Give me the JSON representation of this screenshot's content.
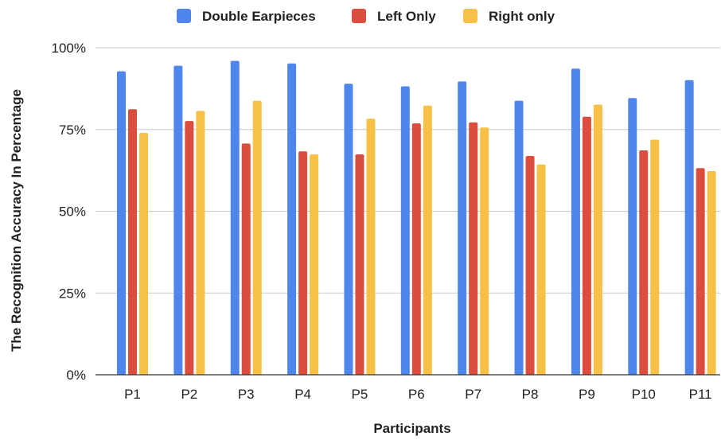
{
  "chart_data": {
    "type": "bar",
    "title": "",
    "xlabel": "Participants",
    "ylabel": "The Recognition Accuracy In Percentage",
    "ylim": [
      0,
      100
    ],
    "y_ticks": [
      "0%",
      "25%",
      "50%",
      "75%",
      "100%"
    ],
    "y_tick_values": [
      0,
      25,
      50,
      75,
      100
    ],
    "grid": true,
    "legend_position": "top",
    "categories": [
      "P1",
      "P2",
      "P3",
      "P4",
      "P5",
      "P6",
      "P7",
      "P8",
      "P9",
      "P10",
      "P11"
    ],
    "series": [
      {
        "name": "Double Earpieces",
        "color": "#4f86ec",
        "values": [
          92.8,
          94.5,
          96,
          95.2,
          89,
          88.2,
          89.7,
          83.8,
          93.6,
          84.6,
          90.1
        ]
      },
      {
        "name": "Left Only",
        "color": "#db4e3f",
        "values": [
          81.2,
          77.6,
          70.7,
          68.3,
          67.4,
          76.9,
          77.2,
          66.9,
          78.9,
          68.6,
          63.2
        ]
      },
      {
        "name": "Right only",
        "color": "#f6c146",
        "values": [
          74,
          80.7,
          83.8,
          67.4,
          78.3,
          82.3,
          75.6,
          64.3,
          82.6,
          71.9,
          62.3
        ]
      }
    ]
  }
}
